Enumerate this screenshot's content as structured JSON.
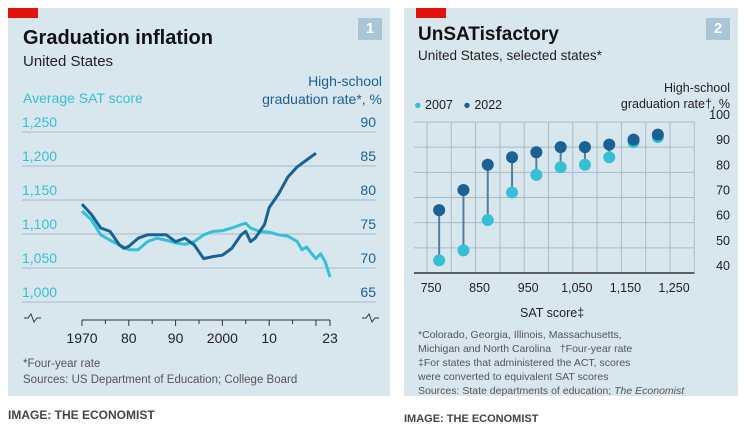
{
  "chart_data": [
    {
      "type": "line",
      "panel_number": "1",
      "title": "Graduation inflation",
      "subtitle": "United States",
      "ylabel_left": "Average SAT score",
      "ylabel_right": "High-school graduation rate*, %",
      "yticks_left": [
        "1,250",
        "1,200",
        "1,150",
        "1,100",
        "1,050",
        "1,000"
      ],
      "ylim_left": [
        1000,
        1250
      ],
      "yticks_right": [
        "90",
        "85",
        "80",
        "75",
        "70",
        "65"
      ],
      "ylim_right": [
        65,
        90
      ],
      "xticks": [
        "1970",
        "80",
        "90",
        "2000",
        "10",
        "23"
      ],
      "xlim": [
        1970,
        2023
      ],
      "series": [
        {
          "name": "Average SAT score",
          "axis": "left",
          "color": "#36c0d3",
          "x": [
            1970,
            1972,
            1974,
            1976,
            1978,
            1980,
            1982,
            1984,
            1986,
            1988,
            1990,
            1992,
            1994,
            1996,
            1998,
            2000,
            2002,
            2004,
            2005,
            2006,
            2008,
            2010,
            2012,
            2014,
            2016,
            2017,
            2018,
            2019,
            2020,
            2021,
            2022,
            2023
          ],
          "y": [
            1125,
            1112,
            1090,
            1082,
            1075,
            1068,
            1068,
            1080,
            1085,
            1082,
            1078,
            1076,
            1080,
            1090,
            1095,
            1096,
            1100,
            1105,
            1107,
            1100,
            1095,
            1094,
            1090,
            1088,
            1080,
            1068,
            1072,
            1063,
            1055,
            1062,
            1050,
            1028
          ]
        },
        {
          "name": "High-school graduation rate",
          "axis": "right",
          "color": "#1a6196",
          "x": [
            1970,
            1972,
            1974,
            1976,
            1978,
            1979,
            1980,
            1982,
            1984,
            1986,
            1988,
            1990,
            1992,
            1994,
            1996,
            1998,
            2000,
            2002,
            2004,
            2005,
            2006,
            2007,
            2008,
            2009,
            2010,
            2012,
            2014,
            2016,
            2018,
            2020
          ],
          "y": [
            78.5,
            77,
            75,
            74.5,
            72.5,
            72,
            72.3,
            73.5,
            74,
            74,
            74,
            73,
            73.5,
            72.5,
            70.5,
            70.8,
            71,
            72,
            74,
            74.5,
            73,
            73.5,
            74.5,
            75.5,
            78,
            80,
            82.5,
            84,
            85,
            86
          ]
        }
      ],
      "footnote": "*Four-year rate",
      "source": "Sources: US Department of Education; College Board"
    },
    {
      "type": "scatter",
      "panel_number": "2",
      "title": "UnSATisfactory",
      "subtitle": "United States, selected states*",
      "legend": [
        {
          "name": "2007",
          "color": "#36c0d3"
        },
        {
          "name": "2022",
          "color": "#1a6196"
        }
      ],
      "legend_placement": "top-left",
      "ylabel": "High-school graduation rate†, %",
      "xlabel": "SAT score‡",
      "xticks": [
        "750",
        "850",
        "950",
        "1,050",
        "1,150",
        "1,250"
      ],
      "xlim": [
        750,
        1250
      ],
      "yticks": [
        "100",
        "90",
        "80",
        "70",
        "60",
        "50",
        "40"
      ],
      "ylim": [
        40,
        100
      ],
      "points": [
        {
          "x": 775,
          "y2007": 45,
          "y2022": 65
        },
        {
          "x": 825,
          "y2007": 49,
          "y2022": 73
        },
        {
          "x": 875,
          "y2007": 61,
          "y2022": 83
        },
        {
          "x": 925,
          "y2007": 72,
          "y2022": 86
        },
        {
          "x": 975,
          "y2007": 79,
          "y2022": 88
        },
        {
          "x": 1025,
          "y2007": 82,
          "y2022": 90
        },
        {
          "x": 1075,
          "y2007": 83,
          "y2022": 90
        },
        {
          "x": 1125,
          "y2007": 86,
          "y2022": 91
        },
        {
          "x": 1175,
          "y2007": 92,
          "y2022": 93
        },
        {
          "x": 1225,
          "y2007": 94,
          "y2022": 95
        }
      ],
      "notes": [
        "*Colorado, Georgia, Illinois, Massachusetts,",
        "Michigan and North Carolina",
        "†Four-year rate",
        "‡For states that administered the ACT, scores",
        "were converted to equivalent SAT scores",
        "Sources: State departments of education; ",
        "The Economist"
      ]
    }
  ],
  "credits": [
    "IMAGE: THE ECONOMIST",
    "IMAGE: THE ECONOMIST"
  ]
}
